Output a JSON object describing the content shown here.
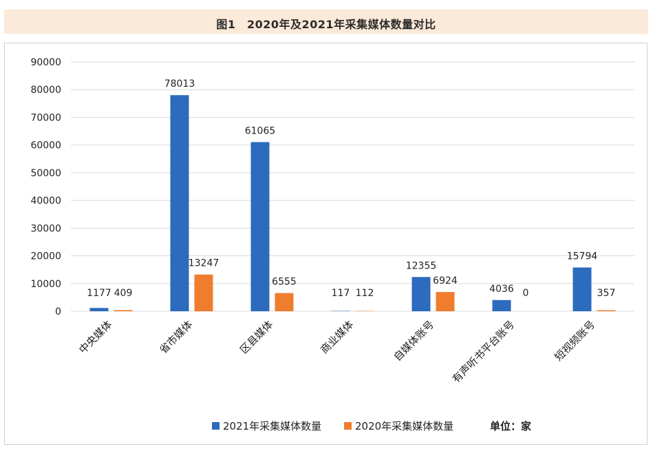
{
  "caption": "图1　2020年及2021年采集媒体数量对比",
  "unit_note": "单位：家",
  "colors": {
    "series2021": "#2c6bbd",
    "series2020": "#ef7d2e",
    "grid": "#d9d9d9",
    "caption_bg": "#fbe9d9"
  },
  "chart_data": {
    "type": "bar",
    "categories": [
      "中央媒体",
      "省市媒体",
      "区县媒体",
      "商业媒体",
      "自媒体账号",
      "有声听书平台账号",
      "短视频账号"
    ],
    "series": [
      {
        "name": "2021年采集媒体数量",
        "values": [
          1177,
          78013,
          61065,
          117,
          12355,
          4036,
          15794
        ]
      },
      {
        "name": "2020年采集媒体数量",
        "values": [
          409,
          13247,
          6555,
          112,
          6924,
          0,
          357
        ]
      }
    ],
    "ylim": [
      0,
      90000
    ],
    "yticks": [
      0,
      10000,
      20000,
      30000,
      40000,
      50000,
      60000,
      70000,
      80000,
      90000
    ],
    "grid": true,
    "legend": "bottom"
  }
}
